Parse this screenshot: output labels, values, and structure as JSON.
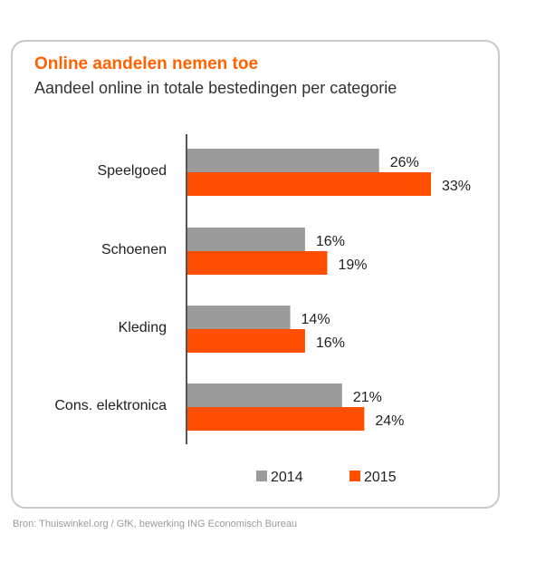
{
  "chart_data": {
    "type": "bar",
    "orientation": "horizontal",
    "title": "Online aandelen nemen toe",
    "subtitle": "Aandeel online in totale bestedingen per categorie",
    "categories": [
      "Speelgoed",
      "Schoenen",
      "Kleding",
      "Cons. elektronica"
    ],
    "series": [
      {
        "name": "2014",
        "values": [
          26,
          16,
          14,
          21
        ],
        "labels": [
          "26%",
          "16%",
          "14%",
          "21%"
        ],
        "color": "#9b9b9b"
      },
      {
        "name": "2015",
        "values": [
          33,
          19,
          16,
          24
        ],
        "labels": [
          "33%",
          "19%",
          "16%",
          "24%"
        ],
        "color": "#ff4e00"
      }
    ],
    "xlim": [
      0,
      40
    ],
    "grid": false,
    "legend_position": "bottom"
  },
  "source": "Bron: Thuiswinkel.org / GfK, bewerking ING Economisch Bureau",
  "colors": {
    "title": "#ff6200",
    "axis": "#555555"
  }
}
